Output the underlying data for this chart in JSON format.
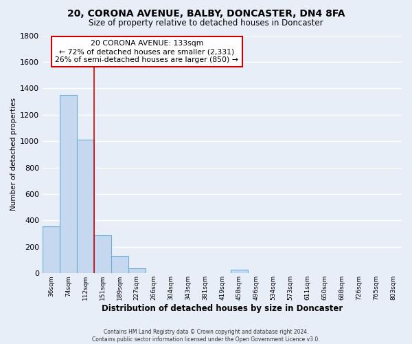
{
  "title": "20, CORONA AVENUE, BALBY, DONCASTER, DN4 8FA",
  "subtitle": "Size of property relative to detached houses in Doncaster",
  "xlabel": "Distribution of detached houses by size in Doncaster",
  "ylabel": "Number of detached properties",
  "bin_labels": [
    "36sqm",
    "74sqm",
    "112sqm",
    "151sqm",
    "189sqm",
    "227sqm",
    "266sqm",
    "304sqm",
    "343sqm",
    "381sqm",
    "419sqm",
    "458sqm",
    "496sqm",
    "534sqm",
    "573sqm",
    "611sqm",
    "650sqm",
    "688sqm",
    "726sqm",
    "765sqm",
    "803sqm"
  ],
  "bar_values": [
    355,
    1350,
    1010,
    290,
    130,
    40,
    0,
    0,
    0,
    0,
    0,
    25,
    0,
    0,
    0,
    0,
    0,
    0,
    0,
    0,
    0
  ],
  "bar_color": "#c5d8f0",
  "bar_edge_color": "#6aaed6",
  "ylim": [
    0,
    1800
  ],
  "yticks": [
    0,
    200,
    400,
    600,
    800,
    1000,
    1200,
    1400,
    1600,
    1800
  ],
  "vline_x": 2.5,
  "vline_color": "#cc0000",
  "annotation_title": "20 CORONA AVENUE: 133sqm",
  "annotation_line1": "← 72% of detached houses are smaller (2,331)",
  "annotation_line2": "26% of semi-detached houses are larger (850) →",
  "footer_line1": "Contains HM Land Registry data © Crown copyright and database right 2024.",
  "footer_line2": "Contains public sector information licensed under the Open Government Licence v3.0.",
  "background_color": "#e8eef8",
  "grid_color": "#ffffff"
}
